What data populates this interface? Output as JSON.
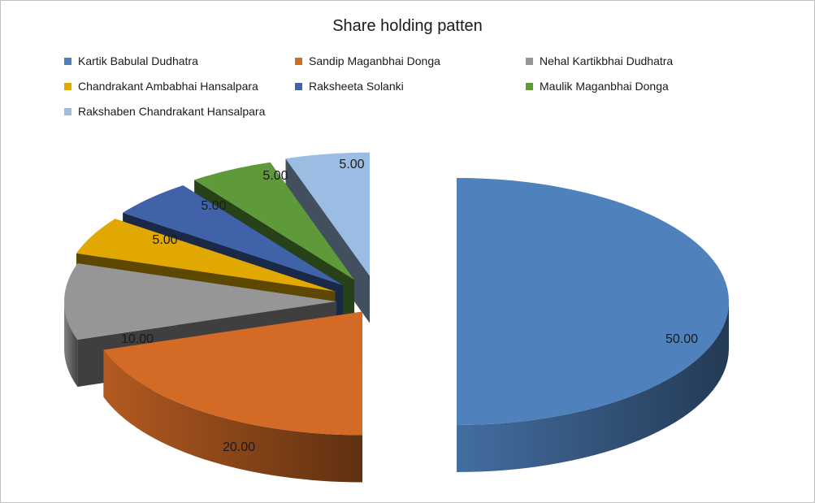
{
  "chart_data": {
    "type": "pie",
    "style": "3d-exploded",
    "title": "Share holding patten",
    "legend_placement": "top",
    "categories": [
      "Kartik Babulal Dudhatra",
      "Sandip Maganbhai Donga",
      "Nehal Kartikbhai Dudhatra",
      "Chandrakant Ambabhai Hansalpara",
      "Raksheeta Solanki",
      "Maulik Maganbhai Donga",
      "Rakshaben Chandrakant Hansalpara"
    ],
    "values": [
      50,
      20,
      10,
      5,
      5,
      5,
      5
    ],
    "data_labels": [
      "50.00",
      "20.00",
      "10.00",
      "5.00",
      "5.00",
      "5.00",
      "5.00"
    ],
    "colors": [
      "#4f81bd",
      "#d36a26",
      "#969696",
      "#e0a800",
      "#3f62a8",
      "#5e9a3a",
      "#9cbde3"
    ]
  }
}
